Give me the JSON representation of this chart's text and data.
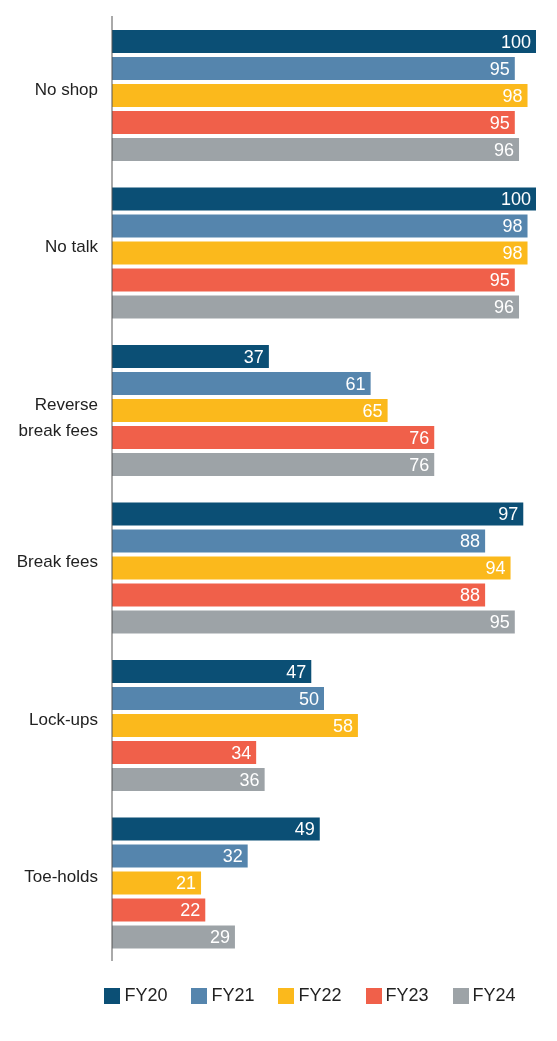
{
  "chart_data": {
    "type": "bar",
    "orientation": "horizontal",
    "categories": [
      "No shop",
      "No talk",
      "Reverse break fees",
      "Break fees",
      "Lock-ups",
      "Toe-holds"
    ],
    "series": [
      {
        "name": "FY20",
        "color": "#0b4f75",
        "values": [
          100,
          100,
          37,
          97,
          47,
          49
        ]
      },
      {
        "name": "FY21",
        "color": "#5585ad",
        "values": [
          95,
          98,
          61,
          88,
          50,
          32
        ]
      },
      {
        "name": "FY22",
        "color": "#fbb91c",
        "values": [
          98,
          98,
          65,
          94,
          58,
          21
        ]
      },
      {
        "name": "FY23",
        "color": "#f0604a",
        "values": [
          95,
          95,
          76,
          88,
          34,
          22
        ]
      },
      {
        "name": "FY24",
        "color": "#9da3a7",
        "values": [
          96,
          96,
          76,
          95,
          36,
          29
        ]
      }
    ],
    "data_labels": true,
    "legend": "bottom"
  }
}
